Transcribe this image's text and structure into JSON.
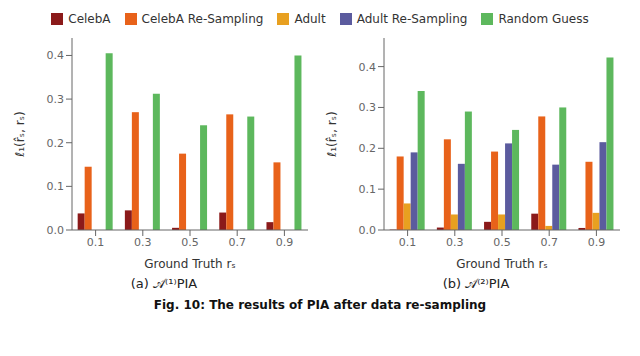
{
  "title": "Fig. 10: The results of PIA after data re-sampling",
  "legend": "top",
  "chart_data": [
    {
      "type": "bar",
      "subtitle": "(a) 𝒜⁽¹⁾PIA",
      "xlabel": "Ground Truth rₛ",
      "ylabel": "ℓ₁(r̂ₛ, rₛ)",
      "categories": [
        0.1,
        0.3,
        0.5,
        0.7,
        0.9
      ],
      "ylim": [
        0.0,
        0.44
      ],
      "yticks": [
        {
          "value": 0.0,
          "label": "0.0"
        },
        0.1,
        0.2,
        0.3,
        0.4
      ],
      "grid": false,
      "series": [
        {
          "name": "CelebA",
          "color": "#8B1A1A",
          "values": [
            0.038,
            0.045,
            0.005,
            0.04,
            0.018
          ]
        },
        {
          "name": "CelebA Re-Sampling",
          "color": "#E8621A",
          "values": [
            0.145,
            0.27,
            0.175,
            0.265,
            0.155
          ]
        },
        {
          "name": "Adult",
          "color": "#E8A020",
          "values": [
            0.0,
            0.0,
            0.0,
            0.0,
            0.0
          ]
        },
        {
          "name": "Adult Re-Sampling",
          "color": "#5B5B9E",
          "values": [
            0.0,
            0.0,
            0.0,
            0.0,
            0.0
          ]
        },
        {
          "name": "Random Guess",
          "color": "#5DB85D",
          "values": [
            0.405,
            0.312,
            0.24,
            0.26,
            0.4
          ]
        }
      ]
    },
    {
      "type": "bar",
      "subtitle": "(b) 𝒜⁽²⁾PIA",
      "xlabel": "Ground Truth rₛ",
      "ylabel": "ℓ₁(r̂ₛ, rₛ)",
      "categories": [
        0.1,
        0.3,
        0.5,
        0.7,
        0.9
      ],
      "ylim": [
        0.0,
        0.47
      ],
      "yticks": [
        {
          "value": 0.0,
          "label": "0.0"
        },
        0.1,
        0.2,
        0.3,
        0.4
      ],
      "grid": false,
      "series": [
        {
          "name": "CelebA",
          "color": "#8B1A1A",
          "values": [
            0.001,
            0.006,
            0.02,
            0.04,
            0.005
          ]
        },
        {
          "name": "CelebA Re-Sampling",
          "color": "#E8621A",
          "values": [
            0.18,
            0.222,
            0.192,
            0.278,
            0.167
          ]
        },
        {
          "name": "Adult",
          "color": "#E8A020",
          "values": [
            0.065,
            0.038,
            0.038,
            0.01,
            0.042
          ]
        },
        {
          "name": "Adult Re-Sampling",
          "color": "#5B5B9E",
          "values": [
            0.19,
            0.162,
            0.212,
            0.16,
            0.215
          ]
        },
        {
          "name": "Random Guess",
          "color": "#5DB85D",
          "values": [
            0.34,
            0.29,
            0.245,
            0.3,
            0.422
          ]
        }
      ]
    }
  ]
}
